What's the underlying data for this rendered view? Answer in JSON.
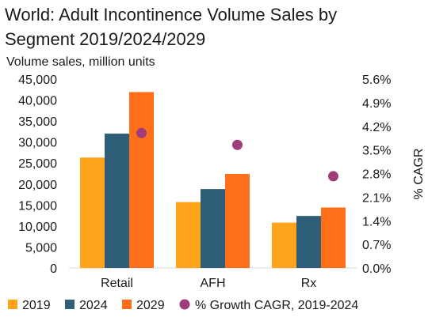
{
  "chart_data": {
    "type": "bar",
    "title_line1": "World: Adult Incontinence Volume Sales by",
    "title_line2": "Segment 2019/2024/2029",
    "subtitle": "Volume sales, million units",
    "y2label": "% CAGR",
    "categories": [
      "Retail",
      "AFH",
      "Rx"
    ],
    "ylim": [
      0,
      45000
    ],
    "y2lim": [
      0,
      5.6
    ],
    "y_ticks": [
      "0",
      "5,000",
      "10,000",
      "15,000",
      "20,000",
      "25,000",
      "30,000",
      "35,000",
      "40,000",
      "45,000"
    ],
    "y2_ticks": [
      "0.0%",
      "0.7%",
      "1.4%",
      "2.1%",
      "2.8%",
      "3.5%",
      "4.2%",
      "4.9%",
      "5.6%"
    ],
    "series": [
      {
        "name": "2019",
        "color": "#ffa31a",
        "values": [
          26300,
          15700,
          10800
        ]
      },
      {
        "name": "2024",
        "color": "#2e5e78",
        "values": [
          32000,
          18800,
          12400
        ]
      },
      {
        "name": "2029",
        "color": "#ff6f1a",
        "values": [
          41900,
          22400,
          14400
        ]
      }
    ],
    "markers": {
      "name": "% Growth CAGR, 2019-2024",
      "color": "#9e3d7a",
      "values": [
        4.0,
        3.65,
        2.72
      ]
    },
    "legend_position": "bottom",
    "grid": false
  }
}
